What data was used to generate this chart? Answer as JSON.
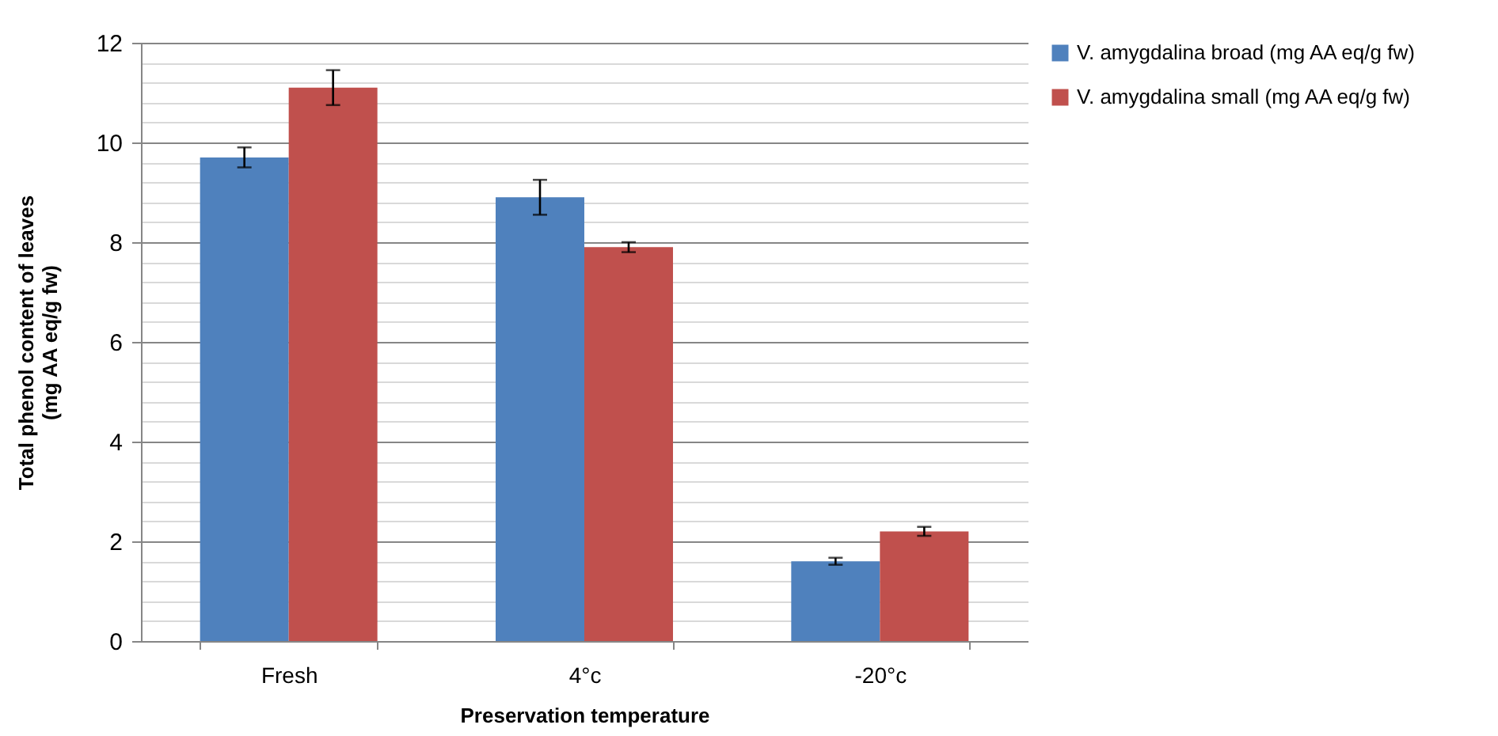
{
  "chart_data": {
    "type": "bar",
    "xlabel": "Preservation temperature",
    "ylabel": "Total phenol content of leaves\n(mg AA eq/g fw)",
    "categories": [
      "Fresh",
      "4°c",
      "-20°c"
    ],
    "series": [
      {
        "name": "V. amygdalina broad (mg AA eq/g fw)",
        "color": "#4f81bd",
        "values": [
          9.7,
          8.9,
          1.6
        ],
        "errors": [
          0.2,
          0.35,
          0.07
        ]
      },
      {
        "name": "V. amygdalina small (mg AA eq/g fw)",
        "color": "#c0504d",
        "values": [
          11.1,
          7.9,
          2.2
        ],
        "errors": [
          0.35,
          0.1,
          0.09
        ]
      }
    ],
    "ylim": [
      0,
      12
    ],
    "yticks": [
      0,
      {
        "value": 0.4,
        "label": null
      },
      {
        "value": 0.8,
        "label": null
      },
      {
        "value": 1.2,
        "label": null
      },
      {
        "value": 1.6,
        "label": null
      },
      2,
      {
        "value": 2.4,
        "label": null
      },
      {
        "value": 2.8,
        "label": null
      },
      {
        "value": 3.2,
        "label": null
      },
      {
        "value": 3.6,
        "label": null
      },
      4,
      {
        "value": 4.4,
        "label": null
      },
      {
        "value": 4.8,
        "label": null
      },
      {
        "value": 5.2,
        "label": null
      },
      {
        "value": 5.6,
        "label": null
      },
      6,
      {
        "value": 6.4,
        "label": null
      },
      {
        "value": 6.8,
        "label": null
      },
      {
        "value": 7.2,
        "label": null
      },
      {
        "value": 7.6,
        "label": null
      },
      8,
      {
        "value": 8.4,
        "label": null
      },
      {
        "value": 8.8,
        "label": null
      },
      {
        "value": 9.2,
        "label": null
      },
      {
        "value": 9.6,
        "label": null
      },
      10,
      {
        "value": 10.4,
        "label": null
      },
      {
        "value": 10.8,
        "label": null
      },
      {
        "value": 11.2,
        "label": null
      },
      {
        "value": 11.6,
        "label": null
      },
      12
    ],
    "grid": true,
    "legend": "right"
  }
}
